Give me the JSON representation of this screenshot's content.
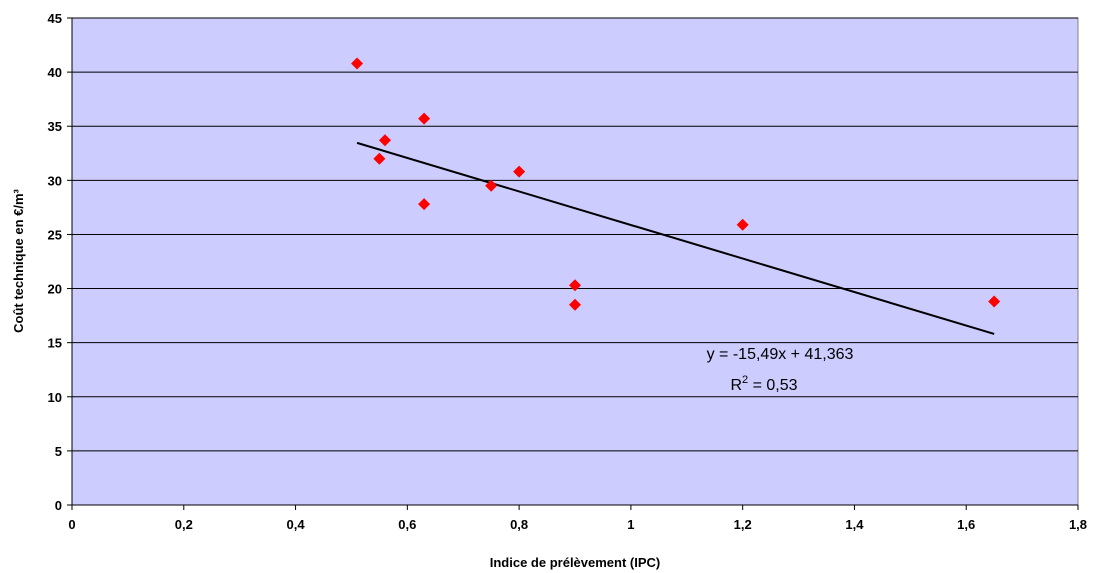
{
  "chart_data": {
    "type": "scatter",
    "xlabel": "Indice de prélèvement (IPC)",
    "ylabel": "Coût technique en €/m³",
    "xlim": [
      0,
      1.8
    ],
    "ylim": [
      0,
      45
    ],
    "x_ticks": [
      "0",
      "0,2",
      "0,4",
      "0,6",
      "0,8",
      "1",
      "1,2",
      "1,4",
      "1,6",
      "1,8"
    ],
    "y_ticks": [
      "0",
      "5",
      "10",
      "15",
      "20",
      "25",
      "30",
      "35",
      "40",
      "45"
    ],
    "grid": "horizontal",
    "legend": "none",
    "colors": {
      "plot_area": "#ccccff",
      "points": "#ff0000",
      "trendline": "#000000",
      "grid": "#000000"
    },
    "series": [
      {
        "x": [
          0.51,
          0.55,
          0.56,
          0.63,
          0.63,
          0.75,
          0.8,
          0.9,
          0.9,
          1.2,
          1.65
        ],
        "y": [
          40.8,
          32.0,
          33.7,
          35.7,
          27.8,
          29.5,
          30.8,
          20.3,
          18.5,
          25.9,
          18.8
        ]
      }
    ],
    "trendline": {
      "x_start": 0.51,
      "x_end": 1.65,
      "slope": -15.49,
      "intercept": 41.363
    },
    "annotations": {
      "equation": "y = -15,49x + 41,363",
      "r2_prefix": "R",
      "r2_exp": "2",
      "r2_suffix": " = 0,53"
    }
  }
}
